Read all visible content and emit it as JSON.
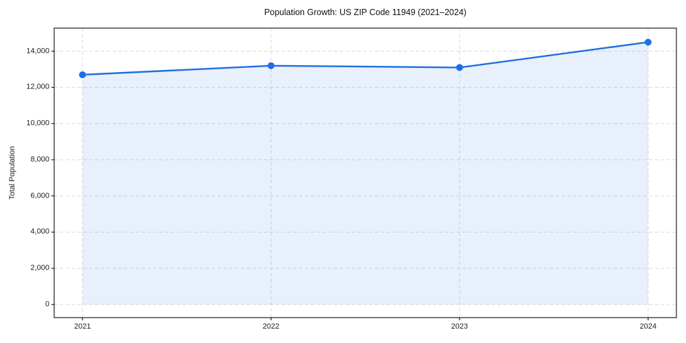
{
  "figure": {
    "background": "#ffffff"
  },
  "chart_data": {
    "type": "line",
    "title": "Population Growth: US ZIP Code 11949 (2021–2024)",
    "xlabel": "",
    "ylabel": "Total Population",
    "x": [
      2021,
      2022,
      2023,
      2024
    ],
    "x_tick_labels": [
      "2021",
      "2022",
      "2023",
      "2024"
    ],
    "series": [
      {
        "name": "Total Population",
        "values": [
          12700,
          13200,
          13100,
          14500
        ]
      }
    ],
    "y_ticks": [
      0,
      2000,
      4000,
      6000,
      8000,
      10000,
      12000,
      14000
    ],
    "y_tick_labels": [
      "0",
      "2,000",
      "4,000",
      "6,000",
      "8,000",
      "10,000",
      "12,000",
      "14,000"
    ],
    "xlim": [
      2020.85,
      2024.15
    ],
    "ylim": [
      -727,
      15277
    ],
    "grid": true,
    "grid_style": "dashed",
    "legend": false,
    "area_fill_to": 0,
    "colors": {
      "line": "#1f6fde",
      "marker": "#1f6fde",
      "fill": "#1f6fde",
      "fill_opacity": 0.1,
      "grid": "#d9d9d9",
      "spine": "#1a1a1a",
      "tick": "#1a1a1a",
      "text": "#1a1a1a"
    }
  }
}
